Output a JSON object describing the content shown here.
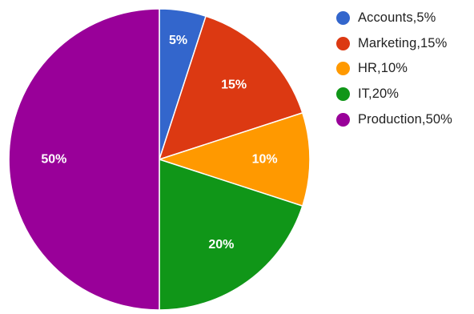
{
  "chart_data": {
    "type": "pie",
    "categories": [
      "Accounts",
      "Marketing",
      "HR",
      "IT",
      "Production"
    ],
    "values": [
      5,
      15,
      10,
      20,
      50
    ],
    "slice_labels": [
      "5%",
      "15%",
      "10%",
      "20%",
      "50%"
    ],
    "legend_entries": [
      "Accounts,5%",
      "Marketing,15%",
      "HR,10%",
      "IT,20%",
      "Production,50%"
    ],
    "colors": [
      "#3366cc",
      "#dc3912",
      "#ff9900",
      "#109618",
      "#990099"
    ],
    "start_angle": "top, clockwise",
    "legend_position": "right",
    "title": ""
  }
}
